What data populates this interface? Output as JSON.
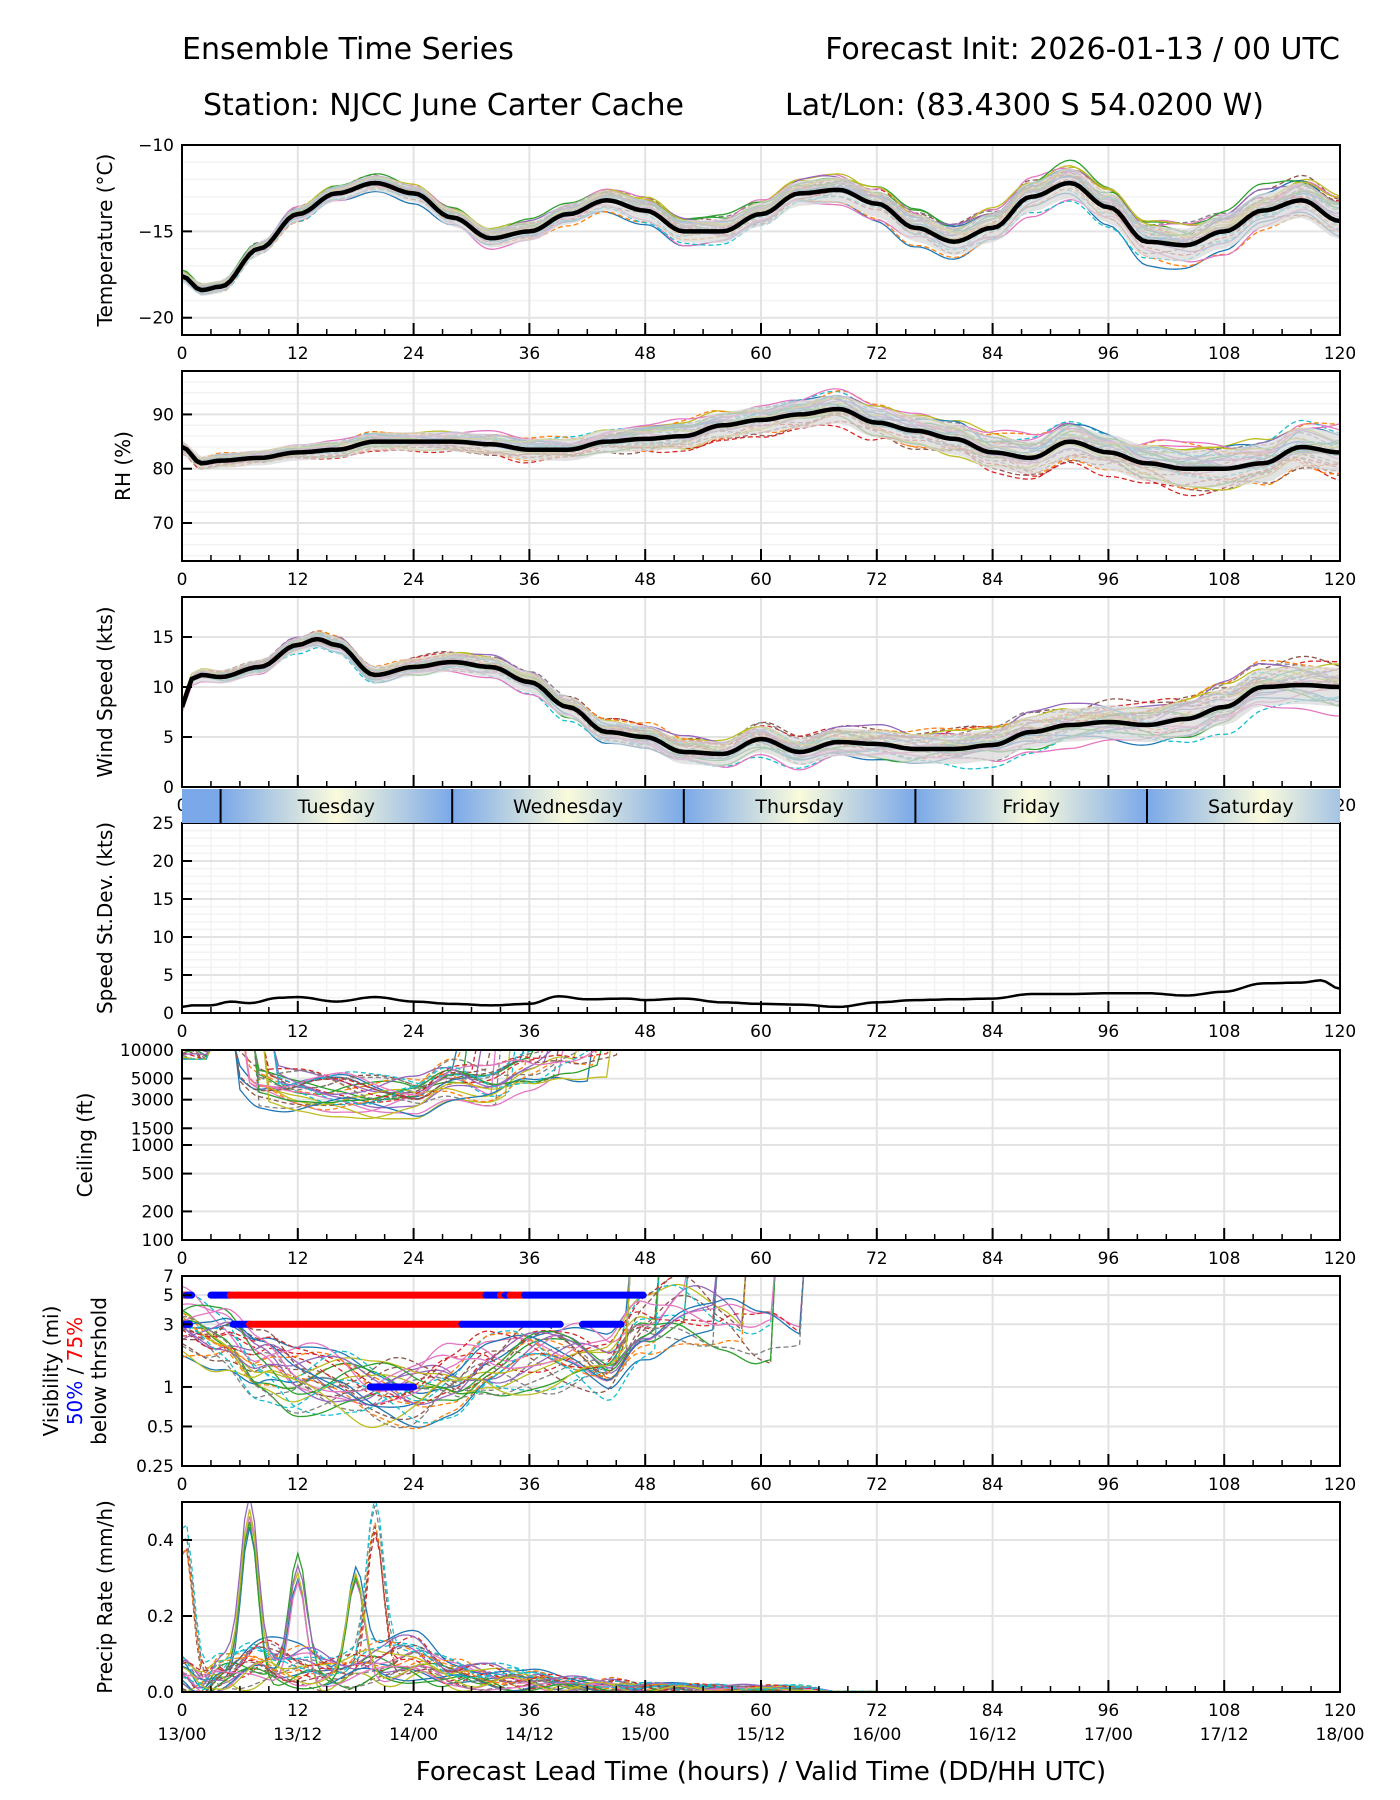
{
  "header": {
    "title_left": "Ensemble Time Series",
    "title_right": "Forecast Init: 2026-01-13 / 00 UTC",
    "station": "Station: NJCC June Carter Cache",
    "latlon": "Lat/Lon: (83.4300 S 54.0200 W)"
  },
  "colors": {
    "mean_line": "#000000",
    "spread_fill": "#d9d9d9",
    "vis_50": "#0000ff",
    "vis_75": "#ff0000",
    "members": [
      "#1f77b4",
      "#ff7f0e",
      "#2ca02c",
      "#d62728",
      "#9467bd",
      "#8c564b",
      "#e377c2",
      "#7f7f7f",
      "#bcbd22",
      "#17becf"
    ]
  },
  "x_axis": {
    "label": "Forecast Lead Time (hours) / Valid Time (DD/HH UTC)",
    "range": [
      0,
      120
    ],
    "ticks": [
      0,
      12,
      24,
      36,
      48,
      60,
      72,
      84,
      96,
      108,
      120
    ],
    "valid_times": [
      "13/00",
      "13/12",
      "14/00",
      "14/12",
      "15/00",
      "15/12",
      "16/00",
      "16/12",
      "17/00",
      "17/12",
      "18/00"
    ]
  },
  "day_band": {
    "days": [
      {
        "label": "Tuesday",
        "start": 4,
        "end": 28
      },
      {
        "label": "Wednesday",
        "start": 28,
        "end": 52
      },
      {
        "label": "Thursday",
        "start": 52,
        "end": 76
      },
      {
        "label": "Friday",
        "start": 76,
        "end": 100
      },
      {
        "label": "Saturday",
        "start": 100,
        "end": 124
      }
    ],
    "boundaries": [
      4,
      28,
      52,
      76,
      100
    ]
  },
  "chart_data": [
    {
      "id": "temperature",
      "type": "line",
      "ylabel": "Temperature (°C)",
      "ylim": [
        -21,
        -10
      ],
      "yticks": [
        -20,
        -15,
        -10
      ],
      "ytick_labels": [
        "−20",
        "−15",
        "−10"
      ],
      "grid": true,
      "x": [
        0,
        2,
        4,
        8,
        12,
        16,
        20,
        24,
        28,
        32,
        36,
        40,
        44,
        48,
        52,
        56,
        60,
        64,
        68,
        72,
        76,
        80,
        84,
        88,
        92,
        96,
        100,
        104,
        108,
        112,
        116,
        120
      ],
      "mean": [
        -17.6,
        -18.4,
        -18.2,
        -16.0,
        -14.0,
        -12.8,
        -12.2,
        -12.8,
        -14.2,
        -15.4,
        -15.0,
        -14.0,
        -13.2,
        -13.8,
        -15.0,
        -15.0,
        -14.0,
        -12.8,
        -12.6,
        -13.4,
        -14.8,
        -15.6,
        -14.8,
        -13.0,
        -12.2,
        -13.6,
        -15.6,
        -15.8,
        -15.0,
        -13.8,
        -13.2,
        -14.4
      ],
      "spread": 0.7,
      "member_count": 30
    },
    {
      "id": "rh",
      "type": "line",
      "ylabel": "RH (%)",
      "ylim": [
        63,
        98
      ],
      "yticks": [
        70,
        80,
        90
      ],
      "ytick_labels": [
        "70",
        "80",
        "90"
      ],
      "grid": true,
      "x": [
        0,
        2,
        4,
        8,
        12,
        16,
        20,
        24,
        28,
        32,
        36,
        40,
        44,
        48,
        52,
        56,
        60,
        64,
        68,
        72,
        76,
        80,
        84,
        88,
        92,
        96,
        100,
        104,
        108,
        112,
        116,
        120
      ],
      "mean": [
        84,
        81,
        81.5,
        82,
        83,
        83.5,
        85,
        85,
        85,
        84.5,
        83.5,
        83.5,
        85,
        85.5,
        86,
        88,
        89,
        90,
        91,
        88.5,
        87,
        85.5,
        83,
        82,
        85,
        83,
        81,
        80,
        80,
        81,
        84,
        83
      ],
      "spread": 2.5,
      "member_count": 30
    },
    {
      "id": "wind_speed",
      "type": "line",
      "ylabel": "Wind Speed (kts)",
      "ylim": [
        0,
        19
      ],
      "yticks": [
        0,
        5,
        10,
        15
      ],
      "ytick_labels": [
        "0",
        "5",
        "10",
        "15"
      ],
      "grid": true,
      "x": [
        0,
        1,
        2,
        4,
        8,
        12,
        14,
        16,
        20,
        24,
        28,
        32,
        36,
        40,
        44,
        48,
        52,
        56,
        60,
        64,
        68,
        72,
        76,
        80,
        84,
        88,
        92,
        96,
        100,
        104,
        108,
        112,
        116,
        120
      ],
      "mean": [
        8,
        10.8,
        11.2,
        11.0,
        12.0,
        14.2,
        14.8,
        14.2,
        11.2,
        12.0,
        12.5,
        12.0,
        10.5,
        8.0,
        5.5,
        5.0,
        3.5,
        3.3,
        4.8,
        3.5,
        4.5,
        4.3,
        3.8,
        3.8,
        4.2,
        5.5,
        6.2,
        6.5,
        6.2,
        6.8,
        8.0,
        10.0,
        10.2,
        10.0
      ],
      "spread": 1.3,
      "member_count": 30
    },
    {
      "id": "speed_stdev",
      "type": "line",
      "ylabel": "Speed St.Dev. (kts)",
      "ylim": [
        0,
        25
      ],
      "yticks": [
        0,
        5,
        10,
        15,
        20,
        25
      ],
      "ytick_labels": [
        "0",
        "5",
        "10",
        "15",
        "20",
        "25"
      ],
      "grid": true,
      "x": [
        0,
        1,
        3,
        5,
        7,
        10,
        12,
        16,
        20,
        24,
        28,
        32,
        36,
        39,
        42,
        46,
        48,
        52,
        56,
        60,
        64,
        68,
        72,
        76,
        80,
        84,
        88,
        92,
        96,
        100,
        104,
        108,
        112,
        116,
        118,
        120
      ],
      "values": [
        0.8,
        1.0,
        1.0,
        1.5,
        1.3,
        2.0,
        2.1,
        1.5,
        2.1,
        1.5,
        1.2,
        1.0,
        1.2,
        2.2,
        1.8,
        1.9,
        1.7,
        1.9,
        1.4,
        1.2,
        1.1,
        0.8,
        1.4,
        1.7,
        1.8,
        1.9,
        2.5,
        2.5,
        2.6,
        2.6,
        2.3,
        2.8,
        3.9,
        4.0,
        4.3,
        3.2
      ]
    },
    {
      "id": "ceiling",
      "type": "line",
      "scale": "log",
      "ylabel": "Ceiling (ft)",
      "ylim": [
        100,
        10000
      ],
      "yticks": [
        100,
        200,
        500,
        1000,
        1500,
        3000,
        5000,
        10000
      ],
      "ytick_labels": [
        "100",
        "200",
        "500",
        "1000",
        "1500",
        "3000",
        "5000",
        "10000"
      ],
      "grid": true,
      "x": [
        0,
        4,
        8,
        12,
        16,
        20,
        24,
        28,
        32,
        36,
        40,
        44,
        48
      ],
      "typical": [
        9000,
        7000,
        4200,
        3800,
        3500,
        3100,
        3300,
        5000,
        4200,
        5500,
        7500,
        9000,
        9800
      ],
      "member_count": 30
    },
    {
      "id": "visibility",
      "type": "line",
      "scale": "log",
      "ylabel": "Visibility (mi)",
      "ylabel_50": "50%",
      "ylabel_sep": " / ",
      "ylabel_75": "75%",
      "ylabel_line3": "below thrshold",
      "ylim": [
        0.25,
        7
      ],
      "yticks": [
        0.25,
        0.5,
        1,
        3,
        5,
        7
      ],
      "ytick_labels": [
        "0.25",
        "0.5",
        "1",
        "3",
        "5",
        "7"
      ],
      "grid": true,
      "x": [
        0,
        4,
        8,
        12,
        16,
        20,
        24,
        28,
        32,
        36,
        40,
        44,
        48,
        52,
        56,
        60,
        64,
        68
      ],
      "typical": [
        3,
        2.5,
        1.5,
        1.1,
        1.1,
        0.95,
        0.9,
        1.1,
        1.5,
        1.7,
        1.6,
        1.4,
        3,
        4,
        3.5,
        2.5,
        2,
        5
      ],
      "threshold_bars": [
        {
          "threshold": 5,
          "level": "75%",
          "start": 0,
          "end": 0.5
        },
        {
          "threshold": 5,
          "level": "50%",
          "start": 0.5,
          "end": 1
        },
        {
          "threshold": 5,
          "level": "50%",
          "start": 3,
          "end": 5
        },
        {
          "threshold": 5,
          "level": "75%",
          "start": 5,
          "end": 31.5
        },
        {
          "threshold": 5,
          "level": "50%",
          "start": 31.5,
          "end": 33
        },
        {
          "threshold": 5,
          "level": "75%",
          "start": 33,
          "end": 33.5
        },
        {
          "threshold": 5,
          "level": "50%",
          "start": 33.5,
          "end": 34
        },
        {
          "threshold": 5,
          "level": "75%",
          "start": 34,
          "end": 35.5
        },
        {
          "threshold": 5,
          "level": "50%",
          "start": 35.5,
          "end": 47.8
        },
        {
          "threshold": 3,
          "level": "75%",
          "start": 0,
          "end": 0.3
        },
        {
          "threshold": 3,
          "level": "50%",
          "start": 0.3,
          "end": 0.8
        },
        {
          "threshold": 3,
          "level": "50%",
          "start": 5.3,
          "end": 7
        },
        {
          "threshold": 3,
          "level": "75%",
          "start": 7,
          "end": 29
        },
        {
          "threshold": 3,
          "level": "50%",
          "start": 29,
          "end": 39.2
        },
        {
          "threshold": 3,
          "level": "50%",
          "start": 41.5,
          "end": 45.5
        },
        {
          "threshold": 1,
          "level": "50%",
          "start": 19.5,
          "end": 24
        }
      ],
      "member_count": 30
    },
    {
      "id": "precip_rate",
      "type": "line",
      "ylabel": "Precip Rate (mm/h)",
      "ylim": [
        0,
        0.5
      ],
      "yticks": [
        0.0,
        0.2,
        0.4
      ],
      "ytick_labels": [
        "0.0",
        "0.2",
        "0.4"
      ],
      "grid": true,
      "x": [
        0,
        2,
        4,
        8,
        12,
        16,
        20,
        24,
        28,
        32,
        36,
        40,
        44,
        48,
        52,
        56,
        60,
        64,
        68,
        72
      ],
      "typical": [
        0.05,
        0.02,
        0.05,
        0.08,
        0.07,
        0.05,
        0.08,
        0.09,
        0.05,
        0.04,
        0.03,
        0.02,
        0.02,
        0.01,
        0.01,
        0.01,
        0.01,
        0.01,
        0.0,
        0.0
      ],
      "peaks": [
        {
          "x": 7,
          "value": 0.42
        },
        {
          "x": 20,
          "value": 0.4
        },
        {
          "x": 12,
          "value": 0.29
        },
        {
          "x": 0.3,
          "value": 0.38
        },
        {
          "x": 18,
          "value": 0.26
        }
      ],
      "member_count": 30
    }
  ]
}
